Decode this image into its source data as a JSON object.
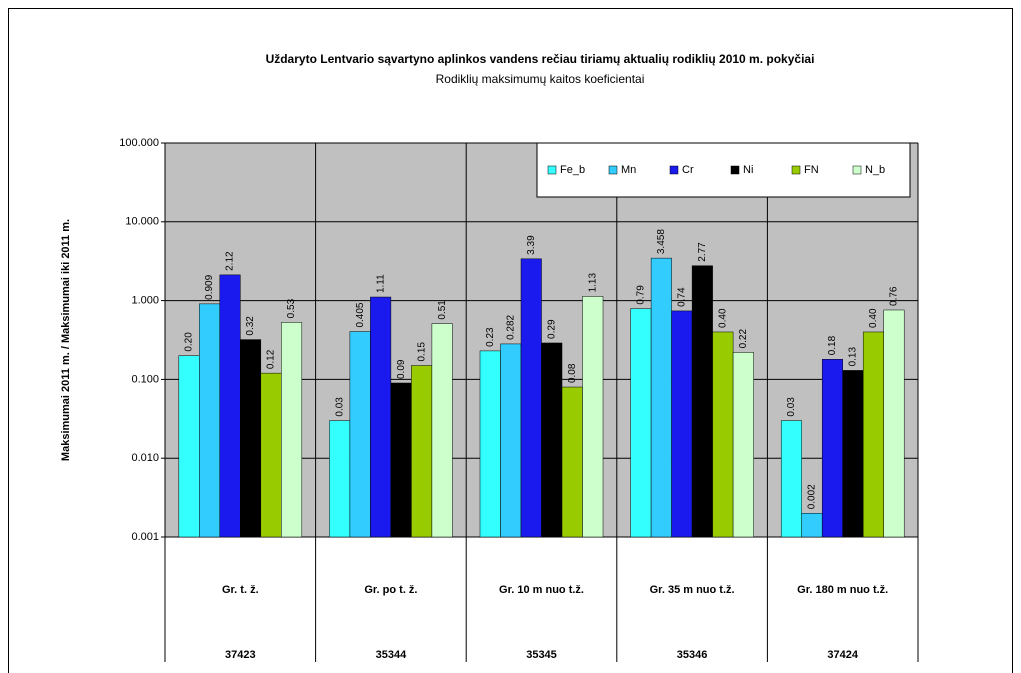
{
  "chart_data": {
    "type": "bar",
    "log_scale": true,
    "grid": true,
    "legend_position": "top-right",
    "title": "Uždaryto Lentvario sąvartyno aplinkos vandens rečiau tiriamų aktualių rodiklių 2010 m. pokyčiai",
    "subtitle": "Rodiklių maksimumų kaitos koeficientai",
    "y_label": "Maksimumai 2011 m. / Maksimumai iki 2011 m.",
    "categories": [
      "Gr. t. ž.",
      "Gr. po t. ž.",
      "Gr. 10 m nuo t.ž.",
      "Gr. 35 m nuo t.ž.",
      "Gr. 180 m nuo t.ž."
    ],
    "category_ids": [
      "37423",
      "35344",
      "35345",
      "35346",
      "37424"
    ],
    "ylim": [
      0.001,
      100
    ],
    "yticks": [
      {
        "value": 0.001,
        "label": "0.001"
      },
      {
        "value": 0.01,
        "label": "0.010"
      },
      {
        "value": 0.1,
        "label": "0.100"
      },
      {
        "value": 1,
        "label": "1.000"
      },
      {
        "value": 10,
        "label": "10.000"
      },
      {
        "value": 100,
        "label": "100.000"
      }
    ],
    "series": [
      {
        "name": "Fe_b",
        "color": "#33ffff",
        "values": [
          0.2,
          0.03,
          0.23,
          0.79,
          0.03
        ],
        "value_labels": [
          "0.20",
          "0.03",
          "0.23",
          "0.79",
          "0.03"
        ]
      },
      {
        "name": "Mn",
        "color": "#33ccff",
        "values": [
          0.909,
          0.405,
          0.282,
          3.458,
          0.002
        ],
        "value_labels": [
          "0.909",
          "0.405",
          "0.282",
          "3.458",
          "0.002"
        ]
      },
      {
        "name": "Cr",
        "color": "#1a1aee",
        "values": [
          2.12,
          1.11,
          3.39,
          0.74,
          0.18
        ],
        "value_labels": [
          "2.12",
          "1.11",
          "3.39",
          "0.74",
          "0.18"
        ]
      },
      {
        "name": "Ni",
        "color": "#000000",
        "values": [
          0.32,
          0.09,
          0.29,
          2.77,
          0.13
        ],
        "value_labels": [
          "0.32",
          "0.09",
          "0.29",
          "2.77",
          "0.13"
        ]
      },
      {
        "name": "FN",
        "color": "#99cc00",
        "values": [
          0.12,
          0.15,
          0.08,
          0.4,
          0.4
        ],
        "value_labels": [
          "0.12",
          "0.15",
          "0.08",
          "0.40",
          "0.40"
        ]
      },
      {
        "name": "N_b",
        "color": "#ccffcc",
        "values": [
          0.53,
          0.51,
          1.13,
          0.22,
          0.76
        ],
        "value_labels": [
          "0.53",
          "0.51",
          "1.13",
          "0.22",
          "0.76"
        ]
      }
    ]
  }
}
